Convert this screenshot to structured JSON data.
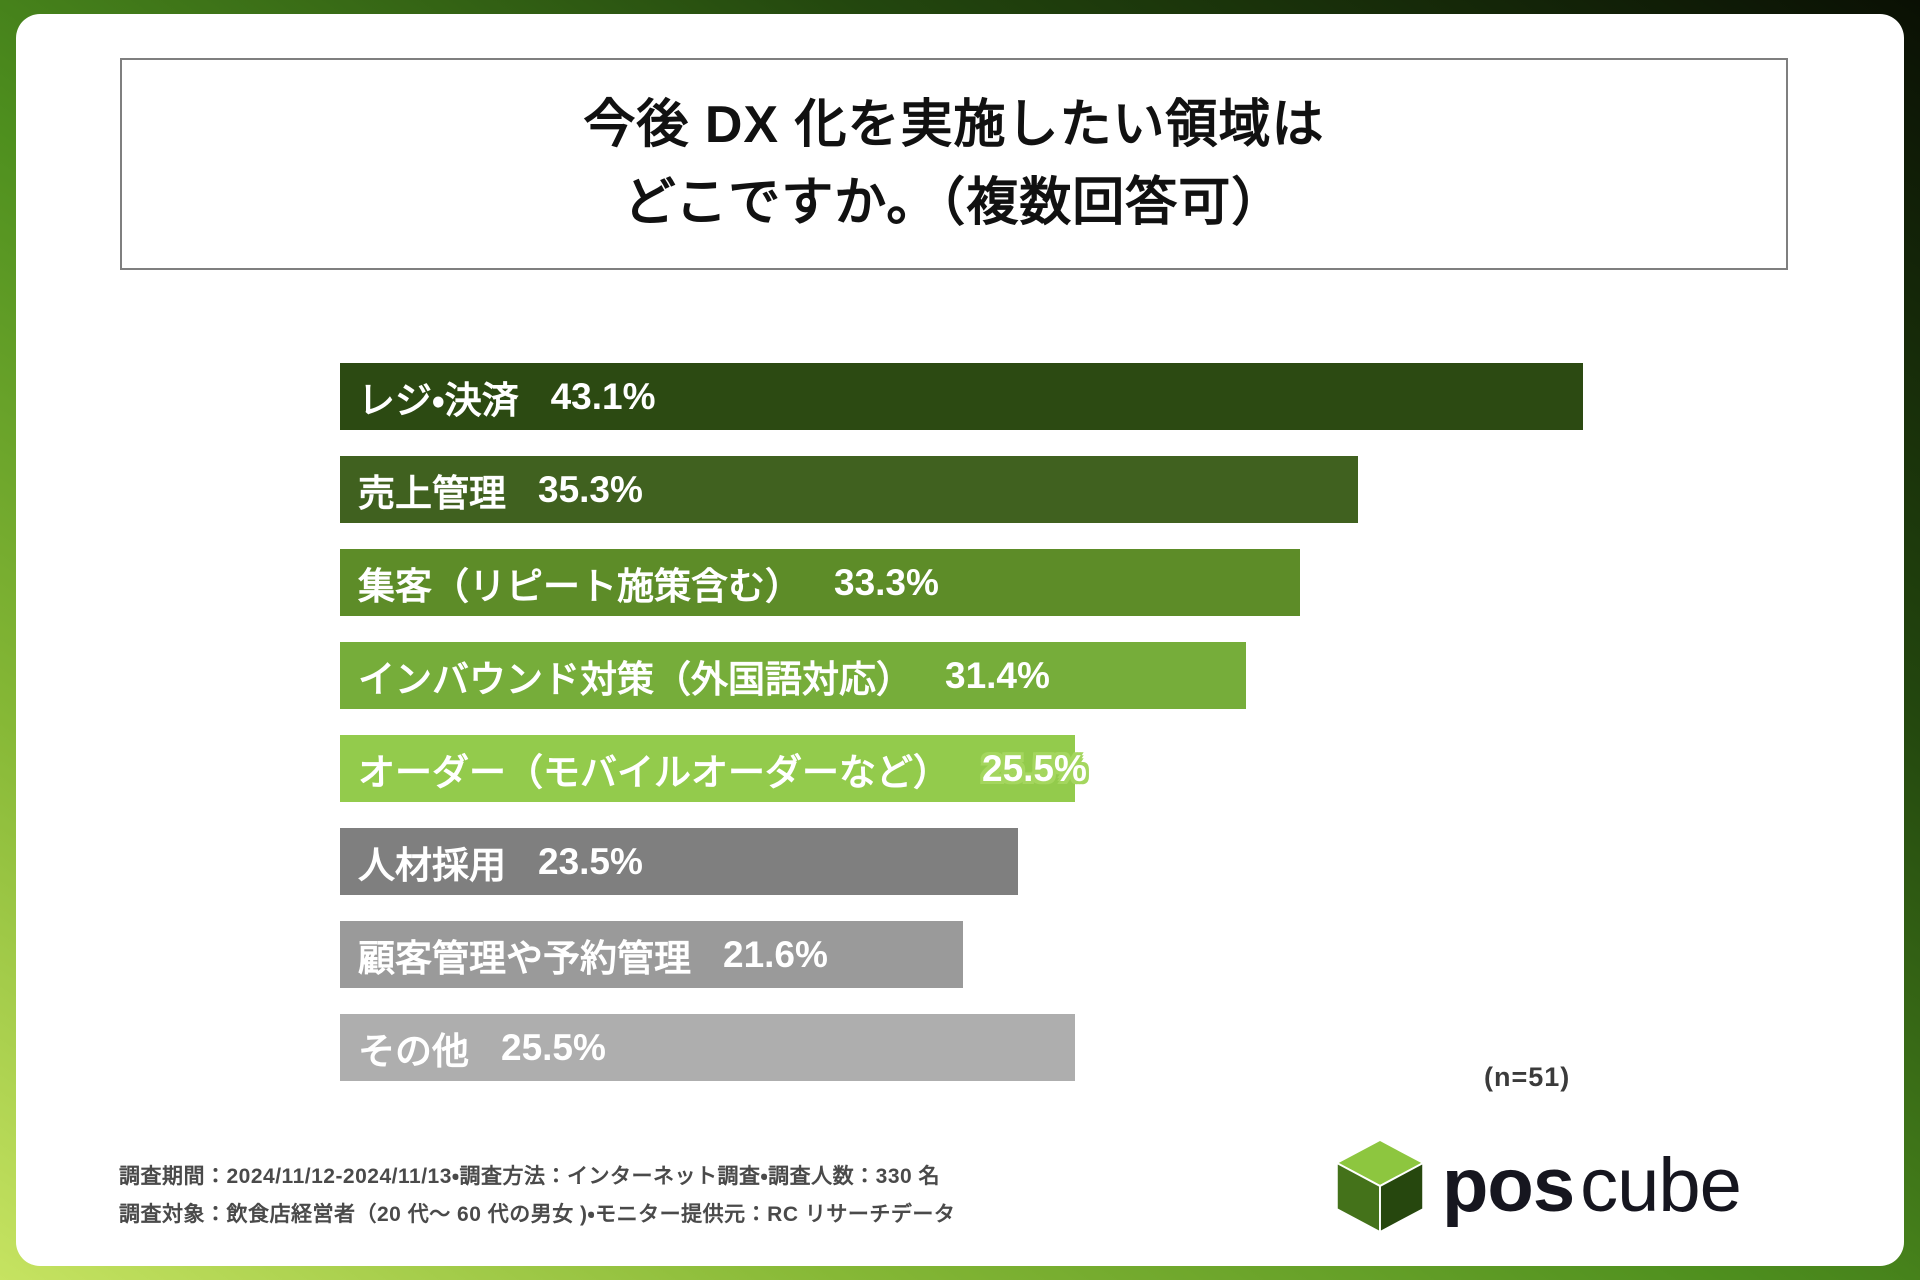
{
  "title": {
    "line1": "今後 DX 化を実施したい領域は",
    "line2": "どこですか。（複数回答可）"
  },
  "chart_data": {
    "type": "bar",
    "orientation": "horizontal",
    "title": "今後 DX 化を実施したい領域はどこですか。（複数回答可）",
    "categories": [
      "レジ・決済",
      "売上管理",
      "集客（リピート施策含む）",
      "インバウンド対策（外国語対応）",
      "オーダー（モバイルオーダーなど）",
      "人材採用",
      "顧客管理や予約管理",
      "その他"
    ],
    "values": [
      43.1,
      35.3,
      33.3,
      31.4,
      25.5,
      23.5,
      21.6,
      25.5
    ],
    "value_labels": [
      "43.1%",
      "35.3%",
      "33.3%",
      "31.4%",
      "25.5%",
      "23.5%",
      "21.6%",
      "25.5%"
    ],
    "bar_colors": [
      "#2c4a12",
      "#40611f",
      "#5d8c28",
      "#76ad3a",
      "#93cb4c",
      "#7f7f7f",
      "#9a9a9a",
      "#aeaeae"
    ],
    "value_label_outlined": [
      false,
      false,
      false,
      false,
      true,
      false,
      false,
      false
    ],
    "xlim": [
      0,
      44
    ],
    "grid": false,
    "legend": "none",
    "n_label": "(n=51)"
  },
  "footer": {
    "line1": "調査期間：2024/11/12-2024/11/13・調査方法：インターネット調査・調査人数：330 名",
    "line2": "調査対象：飲食店経営者（20 代～ 60 代の男女 )・モニター提供元：RC リサーチデータ"
  },
  "logo": {
    "pos": "pos",
    "cube": "cube"
  },
  "colors": {
    "frame_light": "#c6e361",
    "frame_mid": "#4e8f1e",
    "frame_dark": "#0a1004",
    "cube_top": "#8dc63f",
    "cube_left": "#44721a",
    "cube_right": "#26470e"
  }
}
